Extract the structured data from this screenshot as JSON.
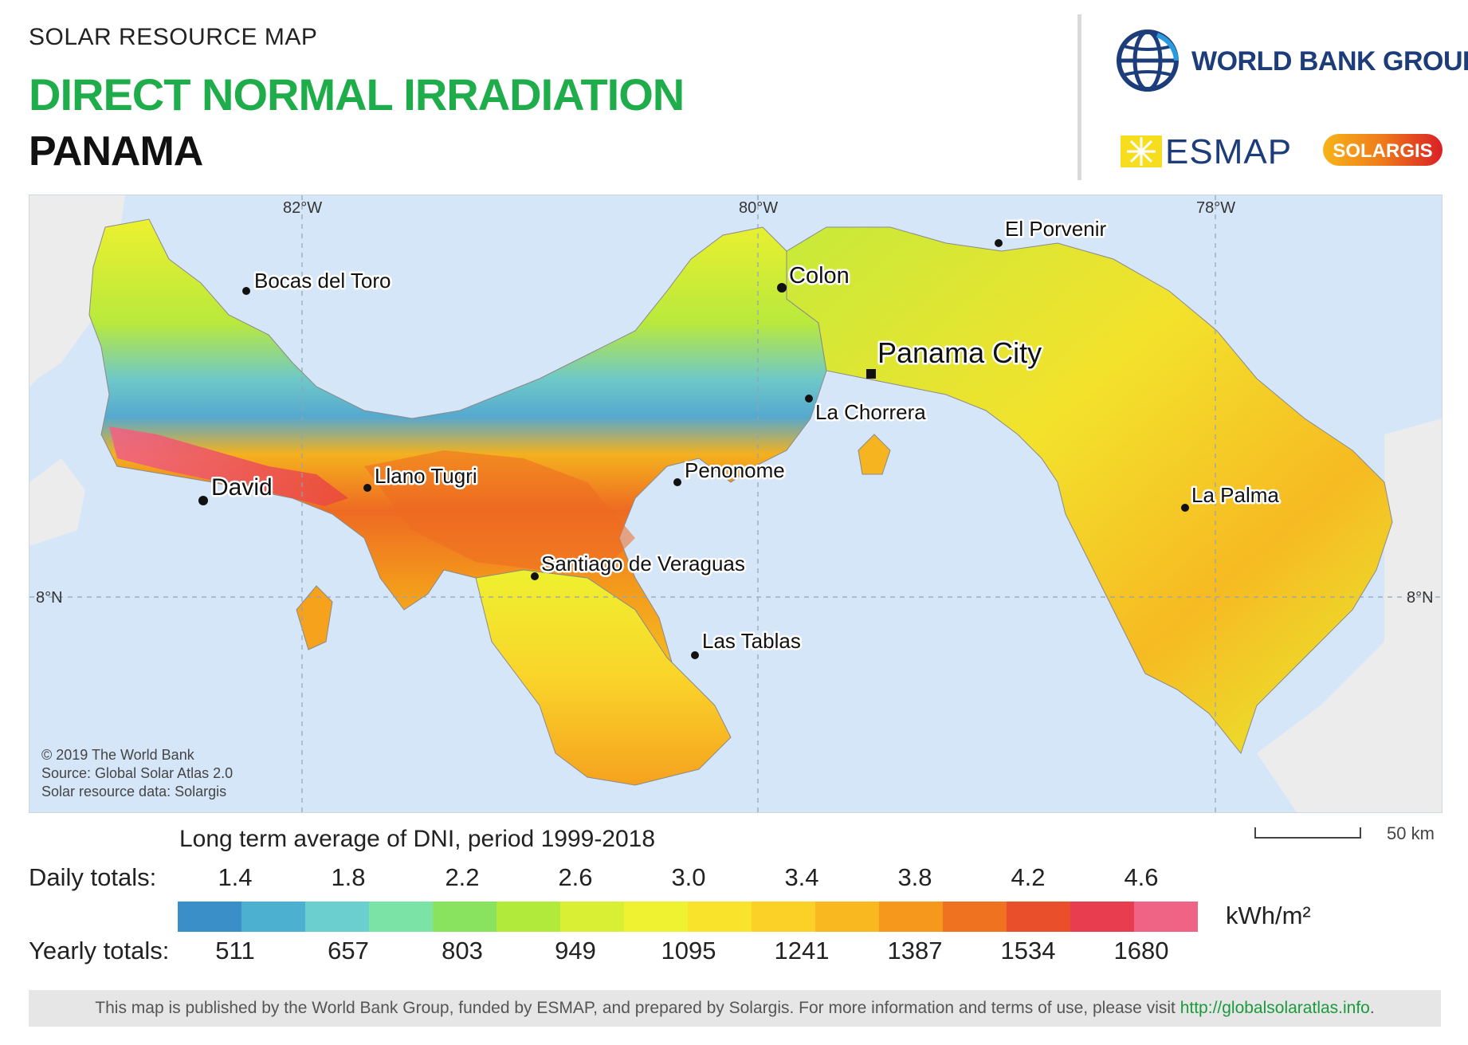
{
  "header": {
    "supertitle": "SOLAR RESOURCE MAP",
    "title": "DIRECT NORMAL IRRADIATION",
    "country": "PANAMA"
  },
  "logos": {
    "world_bank": "WORLD BANK GROUP",
    "esmap": "ESMAP",
    "solargis": "SOLARGIS"
  },
  "map": {
    "graticule": {
      "longitudes": [
        "82°W",
        "80°W",
        "78°W"
      ],
      "latitudes": [
        "8°N"
      ]
    },
    "cities": [
      {
        "name": "Bocas del Toro"
      },
      {
        "name": "Colon"
      },
      {
        "name": "El Porvenir"
      },
      {
        "name": "Panama City",
        "capital": true
      },
      {
        "name": "La Chorrera"
      },
      {
        "name": "Penonome"
      },
      {
        "name": "Llano Tugri"
      },
      {
        "name": "David"
      },
      {
        "name": "La Palma"
      },
      {
        "name": "Santiago de Veraguas"
      },
      {
        "name": "Las Tablas"
      }
    ],
    "credits": [
      "© 2019 The World Bank",
      "Source: Global Solar Atlas 2.0",
      "Solar resource data: Solargis"
    ]
  },
  "legend": {
    "title": "Long term average of DNI, period 1999-2018",
    "daily_label": "Daily totals:",
    "yearly_label": "Yearly totals:",
    "daily_ticks": [
      "1.4",
      "1.8",
      "2.2",
      "2.6",
      "3.0",
      "3.4",
      "3.8",
      "4.2",
      "4.6"
    ],
    "yearly_ticks": [
      "511",
      "657",
      "803",
      "949",
      "1095",
      "1241",
      "1387",
      "1534",
      "1680"
    ],
    "unit": "kWh/m²",
    "colors": [
      "#3a8fc9",
      "#4cb0d0",
      "#6ccfcf",
      "#7ce3a6",
      "#89e35f",
      "#b1ea3a",
      "#d9ef33",
      "#eef230",
      "#fae32b",
      "#fbd127",
      "#f9b820",
      "#f5981c",
      "#ee721f",
      "#ea4f2c",
      "#e83c4f",
      "#ef6384"
    ]
  },
  "scale": {
    "label": "50 km"
  },
  "footer": {
    "text": "This map is published by the World Bank Group, funded by ESMAP, and prepared by Solargis. For more information and terms of use, please visit ",
    "link": "http://globalsolaratlas.info",
    "end": "."
  }
}
